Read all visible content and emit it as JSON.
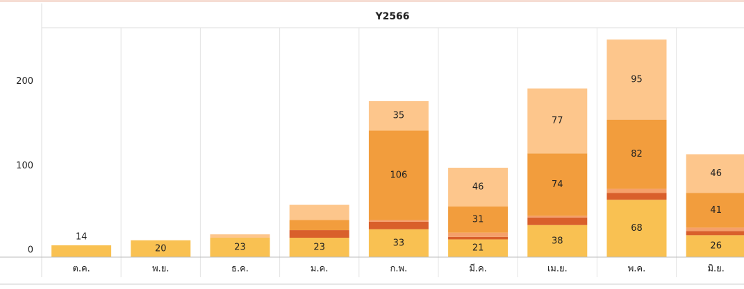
{
  "chart_data": {
    "type": "stacked_bar",
    "title": "Y2566",
    "categories": [
      "ต.ค.",
      "พ.ย.",
      "ธ.ค.",
      "ม.ค.",
      "ก.พ.",
      "มี.ค.",
      "เม.ย.",
      "พ.ค.",
      "มิ.ย."
    ],
    "series": [
      {
        "color": "#f9c152",
        "values": [
          14,
          20,
          23,
          23,
          33,
          21,
          38,
          68,
          26
        ],
        "show_label": [
          true,
          true,
          true,
          true,
          true,
          true,
          true,
          true,
          true
        ]
      },
      {
        "color": "#d95f2b",
        "values": [
          0,
          0,
          0,
          9,
          9,
          3,
          9,
          8,
          5
        ],
        "show_label": [
          false,
          false,
          false,
          false,
          false,
          false,
          false,
          false,
          false
        ]
      },
      {
        "color": "#f5a06a",
        "values": [
          0,
          0,
          0,
          0,
          2,
          5,
          2,
          5,
          4
        ],
        "show_label": [
          false,
          false,
          false,
          false,
          false,
          false,
          false,
          false,
          false
        ]
      },
      {
        "color": "#f29d3d",
        "values": [
          0,
          0,
          0,
          12,
          106,
          31,
          74,
          82,
          41
        ],
        "show_label": [
          false,
          false,
          false,
          false,
          true,
          true,
          true,
          true,
          true
        ]
      },
      {
        "color": "#fdc68c",
        "values": [
          0,
          0,
          4,
          18,
          35,
          46,
          77,
          95,
          46
        ],
        "show_label": [
          false,
          false,
          false,
          false,
          true,
          true,
          true,
          true,
          true
        ]
      }
    ],
    "ylim": [
      0,
      272
    ],
    "yticks": [
      0,
      100,
      200
    ],
    "grid": false
  }
}
